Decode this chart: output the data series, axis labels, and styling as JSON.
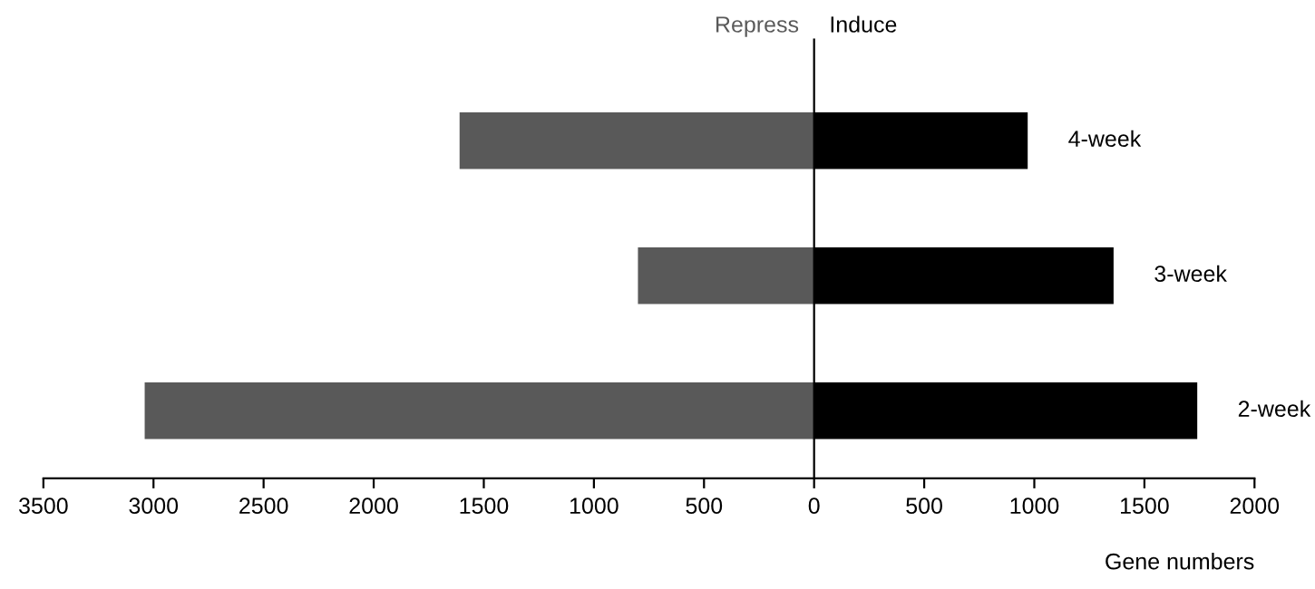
{
  "chart_data": {
    "type": "bar",
    "orientation": "horizontal",
    "stacked": true,
    "xlabel": "Gene numbers",
    "categories": [
      "4-week",
      "3-week",
      "2-week"
    ],
    "series": [
      {
        "name": "Repress",
        "color": "#595959",
        "values": [
          -1610,
          -800,
          -3040
        ]
      },
      {
        "name": "Induce",
        "color": "#000000",
        "values": [
          970,
          1360,
          1740
        ]
      }
    ],
    "xlim": [
      -3500,
      2000
    ],
    "xticks": [
      {
        "value": -3500,
        "label": "3500"
      },
      {
        "value": -3000,
        "label": "3000"
      },
      {
        "value": -2500,
        "label": "2500"
      },
      {
        "value": -2000,
        "label": "2000"
      },
      {
        "value": -1500,
        "label": "1500"
      },
      {
        "value": -1000,
        "label": "1000"
      },
      {
        "value": -500,
        "label": "500"
      },
      0,
      500,
      1000,
      1500,
      2000
    ],
    "legend": false
  }
}
